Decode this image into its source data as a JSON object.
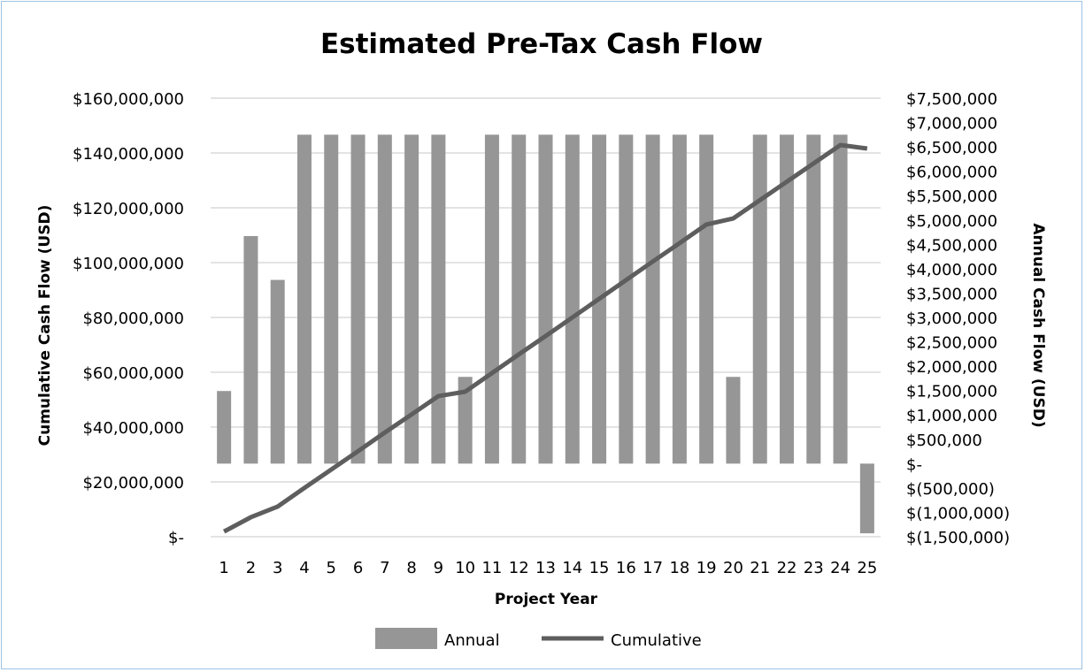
{
  "chart_data": {
    "type": "bar+line",
    "title": "Estimated Pre-Tax Cash Flow",
    "xlabel": "Project Year",
    "ylabel_left": "Cumulative Cash Flow (USD)",
    "ylabel_right": "Annual Cash Flow (USD)",
    "categories": [
      "1",
      "2",
      "3",
      "4",
      "5",
      "6",
      "7",
      "8",
      "9",
      "10",
      "11",
      "12",
      "13",
      "14",
      "15",
      "16",
      "17",
      "18",
      "19",
      "20",
      "21",
      "22",
      "23",
      "24",
      "25"
    ],
    "ylim_left": [
      0,
      160000000
    ],
    "ylim_right": [
      -1500000,
      7500000
    ],
    "left_ticks": [
      "$-",
      "$20,000,000",
      "$40,000,000",
      "$60,000,000",
      "$80,000,000",
      "$100,000,000",
      "$120,000,000",
      "$140,000,000",
      "$160,000,000"
    ],
    "right_ticks": [
      "$(1,500,000)",
      "$(1,000,000)",
      "$(500,000)",
      "$-",
      "$500,000",
      "$1,000,000",
      "$1,500,000",
      "$2,000,000",
      "$2,500,000",
      "$3,000,000",
      "$3,500,000",
      "$4,000,000",
      "$4,500,000",
      "$5,000,000",
      "$5,500,000",
      "$6,000,000",
      "$6,500,000",
      "$7,000,000",
      "$7,500,000"
    ],
    "grid": true,
    "legend": "bottom",
    "series": [
      {
        "name": "Annual",
        "type": "bar",
        "axis": "right",
        "color": "#969696",
        "values": [
          1490000,
          4670000,
          3770000,
          6750000,
          6750000,
          6750000,
          6750000,
          6750000,
          6750000,
          1780000,
          6750000,
          6750000,
          6750000,
          6750000,
          6750000,
          6750000,
          6750000,
          6750000,
          6750000,
          1780000,
          6750000,
          6750000,
          6750000,
          6750000,
          -1430000
        ]
      },
      {
        "name": "Cumulative",
        "type": "line",
        "axis": "left",
        "color": "#5e5e5e",
        "values": [
          1900000,
          7100000,
          11000000,
          17800000,
          24500000,
          31200000,
          38000000,
          44600000,
          51300000,
          52900000,
          59700000,
          66500000,
          73200000,
          80000000,
          86800000,
          93600000,
          100400000,
          107100000,
          113900000,
          116100000,
          122800000,
          129500000,
          136200000,
          142900000,
          141600000
        ]
      }
    ]
  }
}
